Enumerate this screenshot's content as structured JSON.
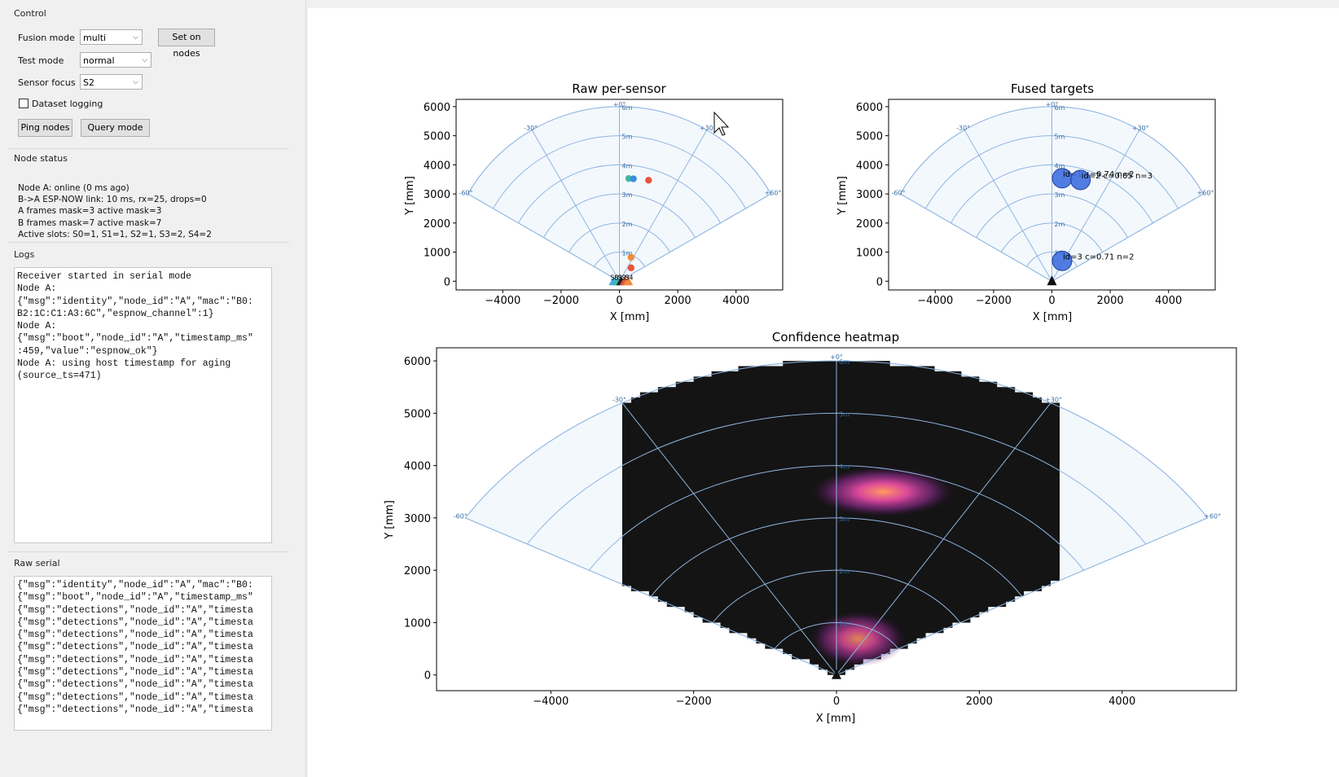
{
  "control": {
    "title": "Control",
    "fusion_mode_label": "Fusion mode",
    "fusion_mode_value": "multi",
    "set_on_nodes": "Set on nodes",
    "test_mode_label": "Test mode",
    "test_mode_value": "normal",
    "sensor_focus_label": "Sensor focus",
    "sensor_focus_value": "S2",
    "dataset_logging": "Dataset logging",
    "dataset_logging_checked": false,
    "ping_nodes": "Ping nodes",
    "query_mode": "Query mode"
  },
  "node_status": {
    "title": "Node status",
    "lines": [
      "Node A: online (0 ms ago)",
      "B->A ESP-NOW link: 10 ms, rx=25, drops=0",
      "A frames mask=3 active mask=3",
      "B frames mask=7 active mask=7",
      "Active slots: S0=1, S1=1, S2=1, S3=2, S4=2"
    ]
  },
  "logs": {
    "title": "Logs",
    "text": "Receiver started in serial mode\nNode A:\n{\"msg\":\"identity\",\"node_id\":\"A\",\"mac\":\"B0:\nB2:1C:C1:A3:6C\",\"espnow_channel\":1}\nNode A:\n{\"msg\":\"boot\",\"node_id\":\"A\",\"timestamp_ms\"\n:459,\"value\":\"espnow_ok\"}\nNode A: using host timestamp for aging\n(source_ts=471)"
  },
  "raw_serial": {
    "title": "Raw serial",
    "text": "{\"msg\":\"identity\",\"node_id\":\"A\",\"mac\":\"B0:\n{\"msg\":\"boot\",\"node_id\":\"A\",\"timestamp_ms\"\n{\"msg\":\"detections\",\"node_id\":\"A\",\"timesta\n{\"msg\":\"detections\",\"node_id\":\"A\",\"timesta\n{\"msg\":\"detections\",\"node_id\":\"A\",\"timesta\n{\"msg\":\"detections\",\"node_id\":\"A\",\"timesta\n{\"msg\":\"detections\",\"node_id\":\"A\",\"timesta\n{\"msg\":\"detections\",\"node_id\":\"A\",\"timesta\n{\"msg\":\"detections\",\"node_id\":\"A\",\"timesta\n{\"msg\":\"detections\",\"node_id\":\"A\",\"timesta\n{\"msg\":\"detections\",\"node_id\":\"A\",\"timesta"
  },
  "chart_data": [
    {
      "type": "scatter",
      "title": "Raw per-sensor",
      "xlabel": "X [mm]",
      "ylabel": "Y [mm]",
      "xlim": [
        -5600,
        5600
      ],
      "ylim": [
        -300,
        6250
      ],
      "xticks": [
        -4000,
        -2000,
        0,
        2000,
        4000
      ],
      "yticks": [
        0,
        1000,
        2000,
        3000,
        4000,
        5000,
        6000
      ],
      "polar_grid": {
        "ranges_m": [
          1,
          2,
          3,
          4,
          5,
          6
        ],
        "range_labels": [
          "1m",
          "2m",
          "3m",
          "4m",
          "5m",
          "6m"
        ],
        "angles_deg": [
          -60,
          -30,
          0,
          30,
          60
        ],
        "angle_labels": [
          "-60°",
          "-30°",
          "+0°",
          "+30°",
          "+60°"
        ]
      },
      "points": [
        {
          "x": 320,
          "y": 3530,
          "color": "#3cba9f"
        },
        {
          "x": 480,
          "y": 3520,
          "color": "#3c8ee0"
        },
        {
          "x": 1000,
          "y": 3470,
          "color": "#e8543c"
        },
        {
          "x": 400,
          "y": 820,
          "color": "#f08a3c"
        },
        {
          "x": 400,
          "y": 460,
          "color": "#e8543c"
        }
      ],
      "sensor_labels": [
        "S0",
        "S1",
        "S2",
        "S3",
        "S4"
      ],
      "sensors": [
        {
          "x": -200,
          "color": "#4aa7e8"
        },
        {
          "x": -60,
          "color": "#3cba9f"
        },
        {
          "x": 60,
          "color": "#222222"
        },
        {
          "x": 180,
          "color": "#e8543c"
        },
        {
          "x": 300,
          "color": "#f08a3c"
        }
      ]
    },
    {
      "type": "scatter",
      "title": "Fused targets",
      "xlabel": "X [mm]",
      "ylabel": "Y [mm]",
      "xlim": [
        -5600,
        5600
      ],
      "ylim": [
        -300,
        6250
      ],
      "xticks": [
        -4000,
        -2000,
        0,
        2000,
        4000
      ],
      "yticks": [
        0,
        1000,
        2000,
        3000,
        4000,
        5000,
        6000
      ],
      "polar_grid": {
        "ranges_m": [
          1,
          2,
          3,
          4,
          5,
          6
        ],
        "range_labels": [
          "1m",
          "2m",
          "3m",
          "4m",
          "5m",
          "6m"
        ],
        "angles_deg": [
          -60,
          -30,
          0,
          30,
          60
        ],
        "angle_labels": [
          "-60°",
          "-30°",
          "+0°",
          "+30°",
          "+60°"
        ]
      },
      "targets": [
        {
          "x": 350,
          "y": 3540,
          "label": "id=1 c=0.74 n=2"
        },
        {
          "x": 980,
          "y": 3480,
          "label": "id=2 c=0.65 n=3"
        },
        {
          "x": 350,
          "y": 700,
          "label": "id=3 c=0.71 n=2"
        }
      ]
    },
    {
      "type": "heatmap",
      "title": "Confidence heatmap",
      "xlabel": "X [mm]",
      "ylabel": "Y [mm]",
      "xlim": [
        -5600,
        5600
      ],
      "ylim": [
        -300,
        6250
      ],
      "xticks": [
        -4000,
        -2000,
        0,
        2000,
        4000
      ],
      "yticks": [
        0,
        1000,
        2000,
        3000,
        4000,
        5000,
        6000
      ],
      "polar_grid": {
        "ranges_m": [
          1,
          2,
          3,
          4,
          5,
          6
        ],
        "range_labels": [
          "1m",
          "2m",
          "3m",
          "4m",
          "5m",
          "6m"
        ],
        "angles_deg": [
          -60,
          -30,
          0,
          30,
          60
        ],
        "angle_labels": [
          "-60°",
          "-30°",
          "+0°",
          "+30°",
          "+60°"
        ]
      },
      "heat_extent_x": [
        -3000,
        3000
      ],
      "hotspots": [
        {
          "x": 650,
          "y": 3500,
          "sx": 420,
          "sy": 200,
          "w": 1.0
        },
        {
          "x": 300,
          "y": 690,
          "sx": 280,
          "sy": 220,
          "w": 0.85
        }
      ]
    }
  ]
}
